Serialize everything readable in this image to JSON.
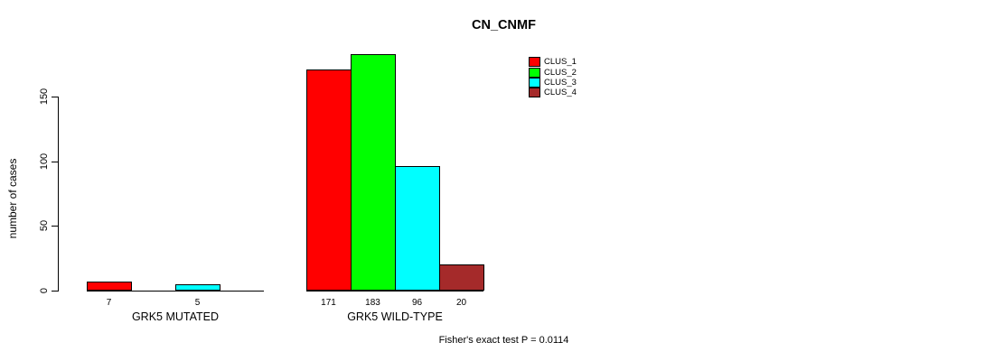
{
  "chart_data": {
    "type": "bar",
    "title": "CN_CNMF",
    "ylabel": "number of cases",
    "xlabel": "",
    "annotation": "Fisher's exact test P = 0.0114",
    "categories": [
      "GRK5 MUTATED",
      "GRK5 WILD-TYPE"
    ],
    "series": [
      {
        "name": "CLUS_1",
        "color": "#FF0000",
        "values": [
          7,
          171
        ]
      },
      {
        "name": "CLUS_2",
        "color": "#00FF00",
        "values": [
          0,
          183
        ]
      },
      {
        "name": "CLUS_3",
        "color": "#00FFFF",
        "values": [
          5,
          96
        ]
      },
      {
        "name": "CLUS_4",
        "color": "#A52A2A",
        "values": [
          0,
          20
        ]
      }
    ],
    "value_labels_shown": [
      "7",
      "5",
      "171",
      "183",
      "96",
      "20"
    ],
    "yticks": [
      0,
      50,
      100,
      150
    ],
    "ylim": [
      0,
      190
    ],
    "legend_position": "top-right",
    "grid": false,
    "bar_border_color": "#000000"
  }
}
